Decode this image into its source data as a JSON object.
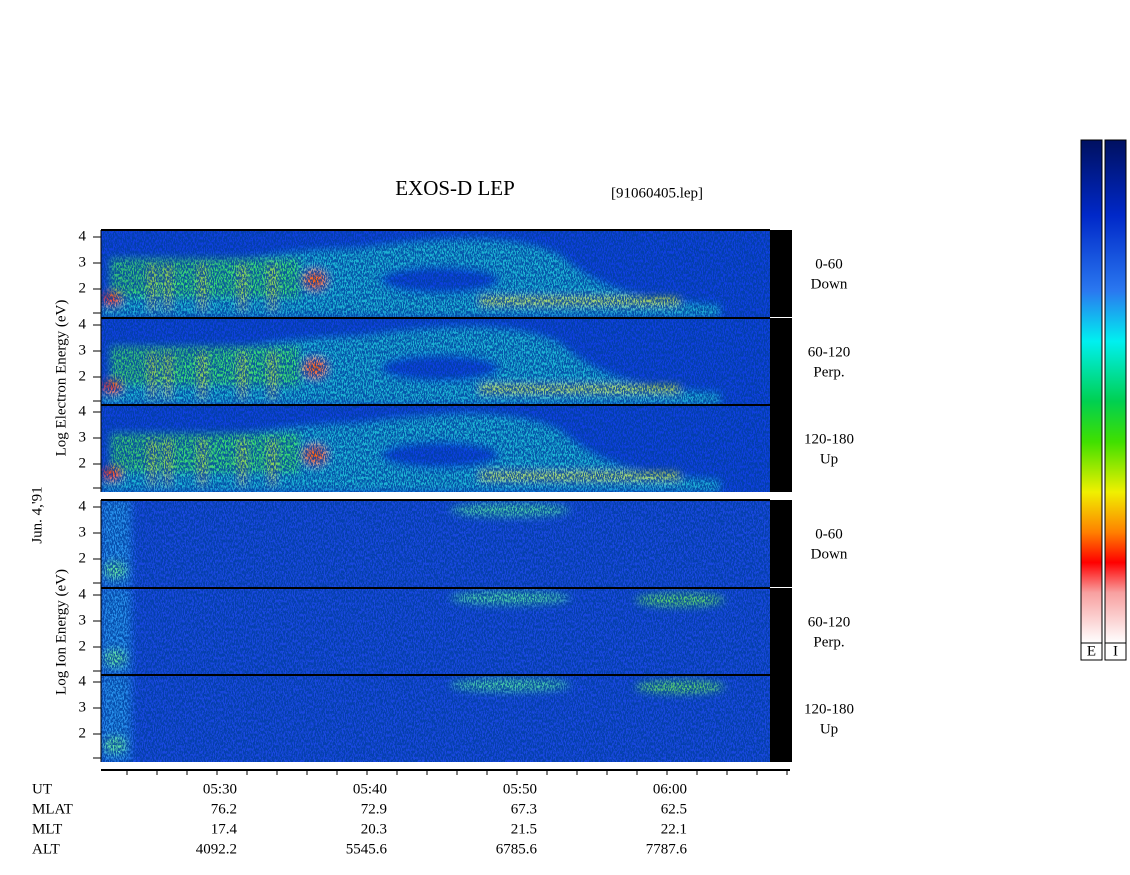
{
  "header": {
    "title": "EXOS-D LEP",
    "file": "[91060405.lep]"
  },
  "date": "Jun. 4,'91",
  "electron": {
    "axis_label": "Log Electron Energy (eV)",
    "panels": [
      {
        "angle": "0-60",
        "direction": "Down",
        "ticks": [
          "4",
          "3",
          "2"
        ]
      },
      {
        "angle": "60-120",
        "direction": "Perp.",
        "ticks": [
          "4",
          "3",
          "2"
        ]
      },
      {
        "angle": "120-180",
        "direction": "Up",
        "ticks": [
          "4",
          "3",
          "2"
        ]
      }
    ]
  },
  "ion": {
    "axis_label": "Log Ion Energy (eV)",
    "panels": [
      {
        "angle": "0-60",
        "direction": "Down",
        "ticks": [
          "4",
          "3",
          "2"
        ]
      },
      {
        "angle": "60-120",
        "direction": "Perp.",
        "ticks": [
          "4",
          "3",
          "2"
        ]
      },
      {
        "angle": "120-180",
        "direction": "Up",
        "ticks": [
          "4",
          "3",
          "2"
        ]
      }
    ]
  },
  "orbit": {
    "rows": [
      {
        "label": "UT",
        "values": [
          "05:30",
          "05:40",
          "05:50",
          "06:00"
        ]
      },
      {
        "label": "MLAT",
        "values": [
          "76.2",
          "72.9",
          "67.3",
          "62.5"
        ]
      },
      {
        "label": "MLT",
        "values": [
          "17.4",
          "20.3",
          "21.5",
          "22.1"
        ]
      },
      {
        "label": "ALT",
        "values": [
          "4092.2",
          "5545.6",
          "6785.6",
          "7787.6"
        ]
      }
    ]
  },
  "colorbars": [
    "E",
    "I"
  ]
}
